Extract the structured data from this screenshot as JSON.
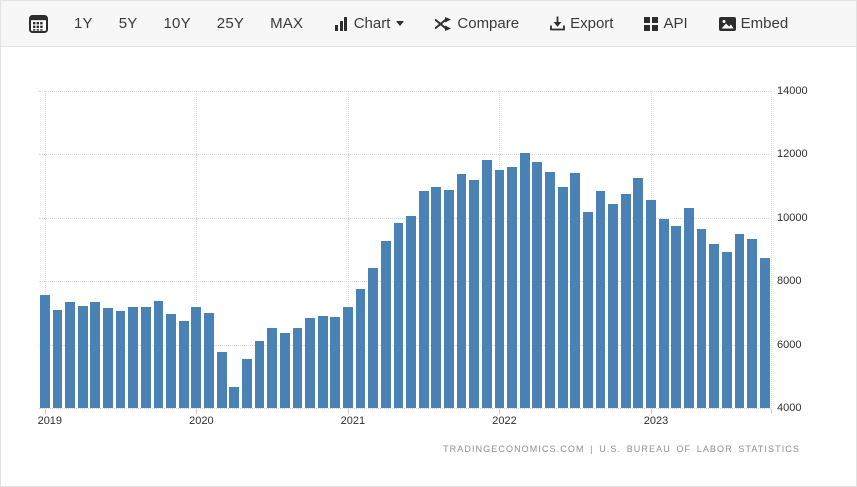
{
  "toolbar": {
    "ranges": [
      "1Y",
      "5Y",
      "10Y",
      "25Y",
      "MAX"
    ],
    "chart_label": "Chart",
    "compare_label": "Compare",
    "export_label": "Export",
    "api_label": "API",
    "embed_label": "Embed",
    "icons": {
      "calendar": "calendar-grid",
      "chart": "bar-chart",
      "chart_caret": "▾",
      "compare": "shuffle-arrows",
      "export": "download-tray",
      "api": "grid-squares",
      "embed": "picture"
    }
  },
  "chart_data": {
    "type": "bar",
    "title": "",
    "bar_color": "#4a82b6",
    "grid": "dotted",
    "legend_position": "none",
    "ylabel": "",
    "xlabel": "",
    "ylim": [
      4000,
      14000
    ],
    "yticks": [
      4000,
      6000,
      8000,
      10000,
      12000,
      14000
    ],
    "ytick_labels": [
      "4000",
      "6000",
      "8000",
      "10000",
      "12000",
      "14000"
    ],
    "year_labels": [
      "2019",
      "2020",
      "2021",
      "2022",
      "2023"
    ],
    "year_start_indices": [
      0,
      12,
      24,
      36,
      48
    ],
    "months": [
      "2019-01",
      "2019-02",
      "2019-03",
      "2019-04",
      "2019-05",
      "2019-06",
      "2019-07",
      "2019-08",
      "2019-09",
      "2019-10",
      "2019-11",
      "2019-12",
      "2020-01",
      "2020-02",
      "2020-03",
      "2020-04",
      "2020-05",
      "2020-06",
      "2020-07",
      "2020-08",
      "2020-09",
      "2020-10",
      "2020-11",
      "2020-12",
      "2021-01",
      "2021-02",
      "2021-03",
      "2021-04",
      "2021-05",
      "2021-06",
      "2021-07",
      "2021-08",
      "2021-09",
      "2021-10",
      "2021-11",
      "2021-12",
      "2022-01",
      "2022-02",
      "2022-03",
      "2022-04",
      "2022-05",
      "2022-06",
      "2022-07",
      "2022-08",
      "2022-09",
      "2022-10",
      "2022-11",
      "2022-12",
      "2023-01",
      "2023-02",
      "2023-03",
      "2023-04",
      "2023-05",
      "2023-06",
      "2023-07",
      "2023-08",
      "2023-09",
      "2023-10"
    ],
    "values": [
      7550,
      7100,
      7350,
      7230,
      7330,
      7150,
      7070,
      7190,
      7190,
      7360,
      6950,
      6750,
      7190,
      7010,
      5760,
      4650,
      5550,
      6100,
      6510,
      6370,
      6510,
      6850,
      6900,
      6870,
      7200,
      7750,
      8410,
      9270,
      9840,
      10050,
      10860,
      10960,
      10870,
      11370,
      11200,
      11820,
      11520,
      11610,
      12040,
      11760,
      11440,
      10960,
      11400,
      10190,
      10840,
      10450,
      10740,
      11240,
      10560,
      9960,
      9750,
      10300,
      9640,
      9165,
      8930,
      9500,
      9340,
      8740
    ],
    "source": "TRADINGECONOMICS.COM  |  U.S.  BUREAU  OF  LABOR  STATISTICS"
  }
}
